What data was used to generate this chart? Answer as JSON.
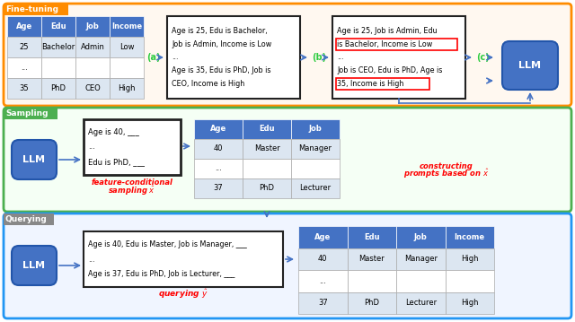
{
  "bg_color": "#ffffff",
  "ft_border": "#FF8C00",
  "ft_fill": "#FFF8F0",
  "ft_label": "Fine-tuning",
  "ft_label_bg": "#FF8C00",
  "samp_border": "#4CAF50",
  "samp_fill": "#F5FFF5",
  "samp_label": "Sampling",
  "samp_label_bg": "#4CAF50",
  "query_border": "#2196F3",
  "query_fill": "#F0F5FF",
  "query_label": "Querying",
  "query_label_bg": "#888888",
  "table_hdr": "#4472C4",
  "table_hdr_tc": "#ffffff",
  "table_even": "#dce6f1",
  "table_odd": "#ffffff",
  "llm_color": "#4472C4",
  "llm_edge": "#2255AA",
  "arrow_color": "#4472C4",
  "red_color": "#FF0000",
  "green_label_color": "#2ECC40",
  "text_box_edge": "#222222",
  "text_box_fill": "#ffffff"
}
